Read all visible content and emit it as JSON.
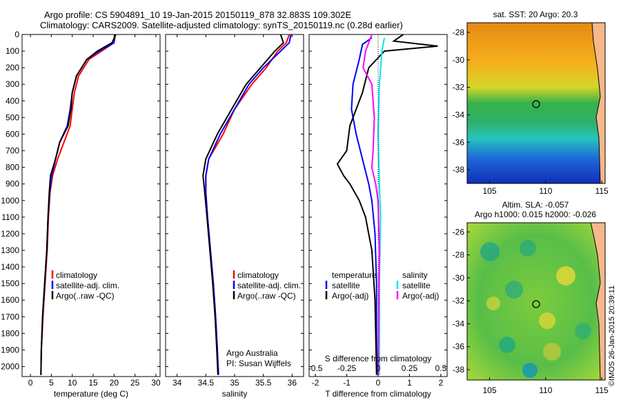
{
  "header": {
    "line1": "Argo profile: CS 5904891_10 19-Jan-2015 20150119_878 32.883S 109.302E",
    "line2": "Climatology: CARS2009. Satellite-adjusted climatology: synTS_20150119.nc (0.28d earlier)"
  },
  "colors": {
    "climatology": "#ff0000",
    "satellite": "#0000ff",
    "argo": "#000000",
    "sat_s_diff": "#00e5ee",
    "argo_s_diff": "#ff00ff"
  },
  "panels": {
    "temperature": {
      "xlabel": "temperature (deg C)",
      "xticks": [
        "0",
        "5",
        "10",
        "15",
        "20",
        "25",
        "30"
      ],
      "legend": [
        "climatology",
        "satellite-adj. clim.",
        "Argo(..raw -QC)"
      ]
    },
    "salinity": {
      "xlabel": "salinity",
      "xticks": [
        "34",
        "34.5",
        "35",
        "35.5",
        "36"
      ],
      "legend": [
        "climatology",
        "satellite-adj. clim.",
        "Argo(..raw -QC)"
      ],
      "note1": "Argo Australia",
      "note2": "PI: Susan Wijffels"
    },
    "difference": {
      "xlabel": "T difference from climatology",
      "top_label": "S difference from climatology",
      "xticks_T": [
        "-2",
        "-1",
        "0",
        "1",
        "2"
      ],
      "xticks_S": [
        "-0.5",
        "-0.25",
        "0",
        "0.25",
        "0.5"
      ],
      "legend_temp_title": "temperature",
      "legend_temp": [
        "satellite",
        "Argo(-adj)"
      ],
      "legend_sal_title": "salinity",
      "legend_sal": [
        "satellite",
        "Argo(-adj)"
      ]
    },
    "map_sst": {
      "title": "sat. SST: 20 Argo: 20.3",
      "yticks": [
        "-28",
        "-30",
        "-32",
        "-34",
        "-36",
        "-38"
      ],
      "xticks": [
        "105",
        "110",
        "115"
      ]
    },
    "map_sla": {
      "title1": "Altim. SLA: -0.057",
      "title2": "Argo h1000: 0.015 h2000: -0.026",
      "yticks": [
        "-26",
        "-28",
        "-30",
        "-32",
        "-34",
        "-36",
        "-38"
      ],
      "xticks": [
        "105",
        "110",
        "115"
      ]
    }
  },
  "yticks_depth": [
    "0",
    "100",
    "200",
    "300",
    "400",
    "500",
    "600",
    "700",
    "800",
    "900",
    "1000",
    "1100",
    "1200",
    "1300",
    "1400",
    "1500",
    "1600",
    "1700",
    "1800",
    "1900",
    "2000"
  ],
  "footer": {
    "stamp": "©IMOS 26-Jan-2015 20:39:11"
  },
  "chart_data": [
    {
      "type": "line",
      "title": "",
      "xlabel": "temperature (deg C)",
      "ylabel": "",
      "xlim": [
        -2,
        31
      ],
      "ylim": [
        2060,
        0
      ],
      "series": [
        {
          "name": "climatology",
          "color": "#ff0000",
          "points": [
            [
              20.3,
              0
            ],
            [
              20,
              50
            ],
            [
              17,
              100
            ],
            [
              14,
              150
            ],
            [
              11.5,
              250
            ],
            [
              10.5,
              350
            ],
            [
              10,
              450
            ],
            [
              9.5,
              550
            ],
            [
              8,
              650
            ],
            [
              6.5,
              750
            ],
            [
              5.3,
              850
            ],
            [
              4.7,
              950
            ],
            [
              4.3,
              1100
            ],
            [
              4,
              1300
            ],
            [
              3.5,
              1500
            ],
            [
              3,
              1700
            ],
            [
              2.6,
              1900
            ],
            [
              2.5,
              2050
            ]
          ]
        },
        {
          "name": "satellite-adj. clim.",
          "color": "#0000ff",
          "points": [
            [
              20.2,
              0
            ],
            [
              20,
              50
            ],
            [
              16.5,
              100
            ],
            [
              13.5,
              150
            ],
            [
              11,
              250
            ],
            [
              10,
              350
            ],
            [
              9.5,
              450
            ],
            [
              8.8,
              550
            ],
            [
              7,
              650
            ],
            [
              6,
              750
            ],
            [
              5.1,
              850
            ],
            [
              4.6,
              950
            ],
            [
              4.2,
              1100
            ],
            [
              3.9,
              1300
            ],
            [
              3.4,
              1500
            ],
            [
              2.9,
              1700
            ],
            [
              2.6,
              1900
            ],
            [
              2.5,
              2050
            ]
          ]
        },
        {
          "name": "Argo(..raw -QC)",
          "color": "#000000",
          "points": [
            [
              20.4,
              0
            ],
            [
              19.5,
              50
            ],
            [
              16,
              100
            ],
            [
              13.5,
              150
            ],
            [
              11,
              250
            ],
            [
              10,
              350
            ],
            [
              9.7,
              450
            ],
            [
              9,
              550
            ],
            [
              7,
              650
            ],
            [
              6,
              750
            ],
            [
              4.8,
              850
            ],
            [
              4.5,
              950
            ],
            [
              4.2,
              1100
            ],
            [
              3.9,
              1300
            ],
            [
              3.4,
              1500
            ],
            [
              2.9,
              1700
            ],
            [
              2.6,
              1900
            ],
            [
              2.5,
              2050
            ]
          ]
        }
      ]
    },
    {
      "type": "line",
      "title": "",
      "xlabel": "salinity",
      "ylabel": "",
      "xlim": [
        33.8,
        36.2
      ],
      "ylim": [
        2060,
        0
      ],
      "series": [
        {
          "name": "climatology",
          "color": "#ff0000",
          "points": [
            [
              35.95,
              0
            ],
            [
              35.9,
              50
            ],
            [
              35.75,
              100
            ],
            [
              35.55,
              200
            ],
            [
              35.3,
              300
            ],
            [
              35.0,
              450
            ],
            [
              34.8,
              600
            ],
            [
              34.55,
              750
            ],
            [
              34.5,
              850
            ],
            [
              34.5,
              950
            ],
            [
              34.53,
              1100
            ],
            [
              34.58,
              1300
            ],
            [
              34.63,
              1500
            ],
            [
              34.67,
              1700
            ],
            [
              34.7,
              1900
            ],
            [
              34.72,
              2050
            ]
          ]
        },
        {
          "name": "satellite-adj. clim.",
          "color": "#0000ff",
          "points": [
            [
              35.98,
              0
            ],
            [
              35.95,
              50
            ],
            [
              35.8,
              100
            ],
            [
              35.5,
              200
            ],
            [
              35.25,
              300
            ],
            [
              35.0,
              450
            ],
            [
              34.75,
              600
            ],
            [
              34.55,
              750
            ],
            [
              34.5,
              850
            ],
            [
              34.5,
              950
            ],
            [
              34.53,
              1100
            ],
            [
              34.58,
              1300
            ],
            [
              34.63,
              1500
            ],
            [
              34.67,
              1700
            ],
            [
              34.7,
              1900
            ],
            [
              34.72,
              2050
            ]
          ]
        },
        {
          "name": "Argo(..raw -QC)",
          "color": "#000000",
          "points": [
            [
              35.8,
              0
            ],
            [
              35.85,
              50
            ],
            [
              35.7,
              100
            ],
            [
              35.45,
              200
            ],
            [
              35.2,
              300
            ],
            [
              34.95,
              450
            ],
            [
              34.7,
              600
            ],
            [
              34.5,
              750
            ],
            [
              34.45,
              850
            ],
            [
              34.48,
              950
            ],
            [
              34.52,
              1100
            ],
            [
              34.57,
              1300
            ],
            [
              34.62,
              1500
            ],
            [
              34.66,
              1700
            ],
            [
              34.69,
              1900
            ],
            [
              34.71,
              2050
            ]
          ]
        }
      ]
    },
    {
      "type": "line",
      "title": "",
      "xlabel": "T difference from climatology",
      "ylabel": "",
      "xlim": [
        -2.2,
        2.2
      ],
      "ylim": [
        2060,
        0
      ],
      "series": [
        {
          "name": "satellite",
          "color": "#0000ff",
          "points": [
            [
              -0.2,
              20
            ],
            [
              -0.5,
              60
            ],
            [
              -0.6,
              150
            ],
            [
              -0.8,
              300
            ],
            [
              -0.85,
              450
            ],
            [
              -0.7,
              600
            ],
            [
              -0.5,
              750
            ],
            [
              -0.3,
              900
            ],
            [
              -0.2,
              1000
            ],
            [
              -0.1,
              1200
            ],
            [
              -0.05,
              1500
            ],
            [
              -0.05,
              1800
            ],
            [
              -0.03,
              2050
            ]
          ]
        },
        {
          "name": "Argo(-adj)",
          "color": "#000000",
          "points": [
            [
              0.8,
              0
            ],
            [
              0.5,
              40
            ],
            [
              1.9,
              70
            ],
            [
              0.2,
              100
            ],
            [
              -0.3,
              200
            ],
            [
              -0.5,
              350
            ],
            [
              -0.7,
              450
            ],
            [
              -0.9,
              550
            ],
            [
              -1.0,
              700
            ],
            [
              -1.3,
              780
            ],
            [
              -1.1,
              850
            ],
            [
              -0.9,
              900
            ],
            [
              -0.6,
              1000
            ],
            [
              -0.4,
              1100
            ],
            [
              -0.2,
              1300
            ],
            [
              -0.1,
              1600
            ],
            [
              -0.05,
              2050
            ]
          ]
        }
      ]
    },
    {
      "type": "line",
      "title": "",
      "xlabel": "S difference from climatology",
      "ylabel": "",
      "xlim": [
        -0.55,
        0.55
      ],
      "ylim": [
        2060,
        0
      ],
      "series": [
        {
          "name": "satellite",
          "color": "#00e5ee",
          "points": [
            [
              0.05,
              20
            ],
            [
              0.03,
              100
            ],
            [
              0.01,
              300
            ],
            [
              0.0,
              600
            ],
            [
              0.01,
              900
            ],
            [
              0.02,
              1100
            ],
            [
              0.01,
              1500
            ],
            [
              0.01,
              2050
            ]
          ]
        },
        {
          "name": "Argo(-adj)",
          "color": "#ff00ff",
          "points": [
            [
              -0.05,
              0
            ],
            [
              -0.1,
              100
            ],
            [
              -0.12,
              200
            ],
            [
              -0.05,
              300
            ],
            [
              -0.03,
              500
            ],
            [
              -0.04,
              700
            ],
            [
              -0.05,
              800
            ],
            [
              -0.02,
              900
            ],
            [
              0.0,
              1000
            ],
            [
              0.01,
              1300
            ],
            [
              0.0,
              2050
            ]
          ]
        }
      ]
    }
  ]
}
